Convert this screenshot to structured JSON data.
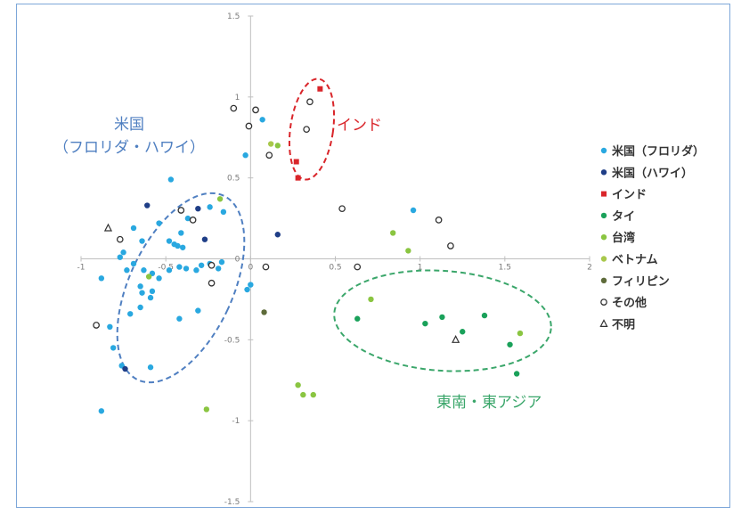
{
  "chart_data": {
    "type": "scatter",
    "xlim": [
      -1,
      2
    ],
    "ylim": [
      -1.5,
      1.5
    ],
    "x_ticks": [
      "-1",
      "-0.5",
      "0",
      "0.5",
      "1",
      "1.5",
      "2"
    ],
    "y_ticks": [
      "1.5",
      "1",
      "0.5",
      "0",
      "-0.5",
      "-1",
      "-1.5"
    ],
    "grid": false,
    "legend_position": "right",
    "series": [
      {
        "name": "米国（フロリダ）",
        "color": "#29a8e0",
        "marker": "circle",
        "points": [
          [
            0.07,
            0.86
          ],
          [
            -0.47,
            0.49
          ],
          [
            -0.54,
            0.22
          ],
          [
            -0.69,
            0.19
          ],
          [
            -0.37,
            0.25
          ],
          [
            -0.24,
            0.32
          ],
          [
            -0.16,
            0.29
          ],
          [
            -0.41,
            0.16
          ],
          [
            -0.64,
            0.11
          ],
          [
            -0.75,
            0.04
          ],
          [
            -0.77,
            0.01
          ],
          [
            -0.45,
            0.09
          ],
          [
            -0.4,
            0.07
          ],
          [
            -0.43,
            0.08
          ],
          [
            -0.48,
            0.11
          ],
          [
            -0.88,
            -0.12
          ],
          [
            -0.73,
            -0.07
          ],
          [
            -0.69,
            -0.03
          ],
          [
            -0.63,
            -0.07
          ],
          [
            -0.58,
            -0.09
          ],
          [
            -0.54,
            -0.12
          ],
          [
            -0.48,
            -0.07
          ],
          [
            -0.42,
            -0.05
          ],
          [
            -0.38,
            -0.06
          ],
          [
            -0.32,
            -0.07
          ],
          [
            -0.29,
            -0.04
          ],
          [
            -0.24,
            -0.03
          ],
          [
            -0.19,
            -0.06
          ],
          [
            -0.58,
            -0.2
          ],
          [
            -0.65,
            -0.17
          ],
          [
            -0.64,
            -0.21
          ],
          [
            -0.59,
            -0.24
          ],
          [
            -0.65,
            -0.3
          ],
          [
            -0.71,
            -0.34
          ],
          [
            -0.83,
            -0.42
          ],
          [
            -0.81,
            -0.55
          ],
          [
            -0.76,
            -0.66
          ],
          [
            -0.59,
            -0.67
          ],
          [
            -0.88,
            -0.94
          ],
          [
            -0.42,
            -0.37
          ],
          [
            -0.31,
            -0.32
          ],
          [
            -0.17,
            -0.02
          ],
          [
            0.0,
            -0.16
          ],
          [
            -0.02,
            -0.19
          ],
          [
            -0.03,
            0.64
          ],
          [
            0.54,
            0.31
          ],
          [
            0.96,
            0.3
          ]
        ]
      },
      {
        "name": "米国（ハワイ）",
        "color": "#1f3e87",
        "marker": "circle",
        "points": [
          [
            -0.61,
            0.33
          ],
          [
            -0.31,
            0.31
          ],
          [
            -0.27,
            0.12
          ],
          [
            0.16,
            0.15
          ],
          [
            -0.74,
            -0.68
          ]
        ]
      },
      {
        "name": "インド",
        "color": "#d9252a",
        "marker": "square",
        "points": [
          [
            0.41,
            1.05
          ],
          [
            0.27,
            0.6
          ],
          [
            0.28,
            0.5
          ]
        ]
      },
      {
        "name": "タイ",
        "color": "#1aa15a",
        "marker": "circle",
        "points": [
          [
            0.63,
            -0.37
          ],
          [
            1.03,
            -0.4
          ],
          [
            1.13,
            -0.36
          ],
          [
            1.25,
            -0.45
          ],
          [
            1.38,
            -0.35
          ],
          [
            1.53,
            -0.53
          ],
          [
            1.57,
            -0.71
          ]
        ]
      },
      {
        "name": "台湾",
        "color": "#8ac541",
        "marker": "circle",
        "points": [
          [
            0.84,
            0.16
          ],
          [
            0.71,
            -0.25
          ],
          [
            0.93,
            0.05
          ],
          [
            1.59,
            -0.46
          ],
          [
            0.28,
            -0.78
          ],
          [
            0.31,
            -0.84
          ],
          [
            0.37,
            -0.84
          ],
          [
            -0.26,
            -0.93
          ],
          [
            -0.6,
            -0.11
          ],
          [
            -0.18,
            0.37
          ],
          [
            0.16,
            0.7
          ]
        ]
      },
      {
        "name": "ベトナム",
        "color": "#a8c84b",
        "marker": "circle",
        "points": [
          [
            0.12,
            0.71
          ]
        ]
      },
      {
        "name": "フィリピン",
        "color": "#5e6b3a",
        "marker": "circle",
        "points": [
          [
            0.08,
            -0.33
          ]
        ]
      },
      {
        "name": "その他",
        "color": "#333333",
        "marker": "open-circle",
        "points": [
          [
            -0.1,
            0.93
          ],
          [
            0.03,
            0.92
          ],
          [
            0.35,
            0.97
          ],
          [
            0.33,
            0.8
          ],
          [
            -0.01,
            0.82
          ],
          [
            0.11,
            0.64
          ],
          [
            0.54,
            0.31
          ],
          [
            -0.41,
            0.3
          ],
          [
            -0.34,
            0.24
          ],
          [
            -0.77,
            0.12
          ],
          [
            1.11,
            0.24
          ],
          [
            1.18,
            0.08
          ],
          [
            0.63,
            -0.05
          ],
          [
            -0.23,
            -0.04
          ],
          [
            0.09,
            -0.05
          ],
          [
            -0.23,
            -0.15
          ],
          [
            -0.91,
            -0.41
          ]
        ]
      },
      {
        "name": "不明",
        "color": "#333333",
        "marker": "open-triangle",
        "points": [
          [
            -0.84,
            0.19
          ],
          [
            1.21,
            -0.5
          ]
        ]
      }
    ],
    "annotations": [
      {
        "text_lines": [
          "米国",
          "（フロリダ・ハワイ）"
        ],
        "color": "#4f7fc1",
        "group": "us"
      },
      {
        "text_lines": [
          "インド"
        ],
        "color": "#d9252a",
        "group": "india"
      },
      {
        "text_lines": [
          "東南・東アジア"
        ],
        "color": "#3aa66a",
        "group": "sea"
      }
    ]
  }
}
